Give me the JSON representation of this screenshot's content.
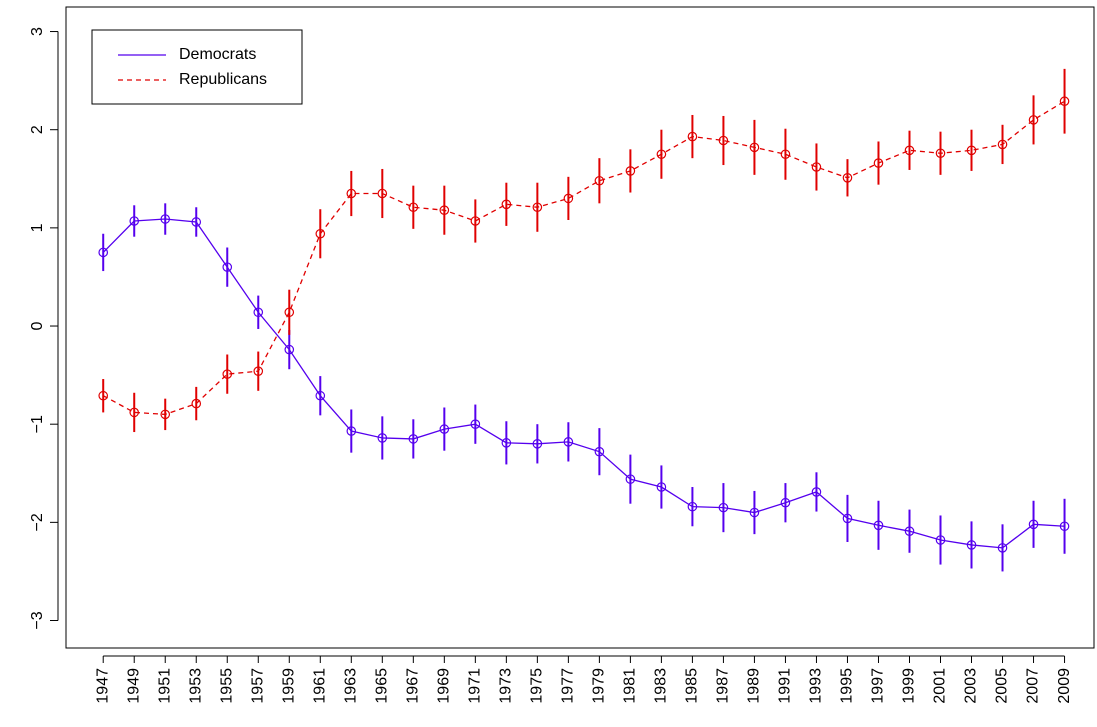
{
  "chart_data": {
    "type": "line",
    "x": [
      1947,
      1949,
      1951,
      1953,
      1955,
      1957,
      1959,
      1961,
      1963,
      1965,
      1967,
      1969,
      1971,
      1973,
      1975,
      1977,
      1979,
      1981,
      1983,
      1985,
      1987,
      1989,
      1991,
      1993,
      1995,
      1997,
      1999,
      2001,
      2003,
      2005,
      2007,
      2009
    ],
    "xlim": [
      1944.6,
      2010.9
    ],
    "ylim": [
      -3.28,
      3.25
    ],
    "yticks": [
      {
        "value": -3,
        "label": "−3"
      },
      {
        "value": -2,
        "label": "−2"
      },
      {
        "value": -1,
        "label": "−1"
      },
      0,
      1,
      2,
      3
    ],
    "legend_position": "topleft",
    "series": [
      {
        "name": "Democrats",
        "color": "#5500ee",
        "dash": false,
        "values": [
          0.75,
          1.07,
          1.09,
          1.06,
          0.6,
          0.14,
          -0.24,
          -0.71,
          -1.07,
          -1.14,
          -1.15,
          -1.05,
          -1.0,
          -1.19,
          -1.2,
          -1.18,
          -1.28,
          -1.56,
          -1.64,
          -1.84,
          -1.85,
          -1.9,
          -1.8,
          -1.69,
          -1.96,
          -2.03,
          -2.09,
          -2.18,
          -2.23,
          -2.26,
          -2.02,
          -2.04
        ],
        "errors": [
          0.19,
          0.16,
          0.16,
          0.15,
          0.2,
          0.17,
          0.2,
          0.2,
          0.22,
          0.22,
          0.2,
          0.22,
          0.2,
          0.22,
          0.2,
          0.2,
          0.24,
          0.25,
          0.22,
          0.2,
          0.25,
          0.22,
          0.2,
          0.2,
          0.24,
          0.25,
          0.22,
          0.25,
          0.24,
          0.24,
          0.24,
          0.28
        ]
      },
      {
        "name": "Republicans",
        "color": "#e00000",
        "dash": true,
        "values": [
          -0.71,
          -0.88,
          -0.9,
          -0.79,
          -0.49,
          -0.46,
          0.14,
          0.94,
          1.35,
          1.35,
          1.21,
          1.18,
          1.07,
          1.24,
          1.21,
          1.3,
          1.48,
          1.58,
          1.75,
          1.93,
          1.89,
          1.82,
          1.75,
          1.62,
          1.51,
          1.66,
          1.79,
          1.76,
          1.79,
          1.85,
          2.1,
          2.29
        ],
        "errors": [
          0.17,
          0.2,
          0.16,
          0.17,
          0.2,
          0.2,
          0.23,
          0.25,
          0.23,
          0.25,
          0.22,
          0.25,
          0.22,
          0.22,
          0.25,
          0.22,
          0.23,
          0.22,
          0.25,
          0.22,
          0.25,
          0.28,
          0.26,
          0.24,
          0.19,
          0.22,
          0.2,
          0.22,
          0.21,
          0.2,
          0.25,
          0.33
        ]
      }
    ]
  }
}
